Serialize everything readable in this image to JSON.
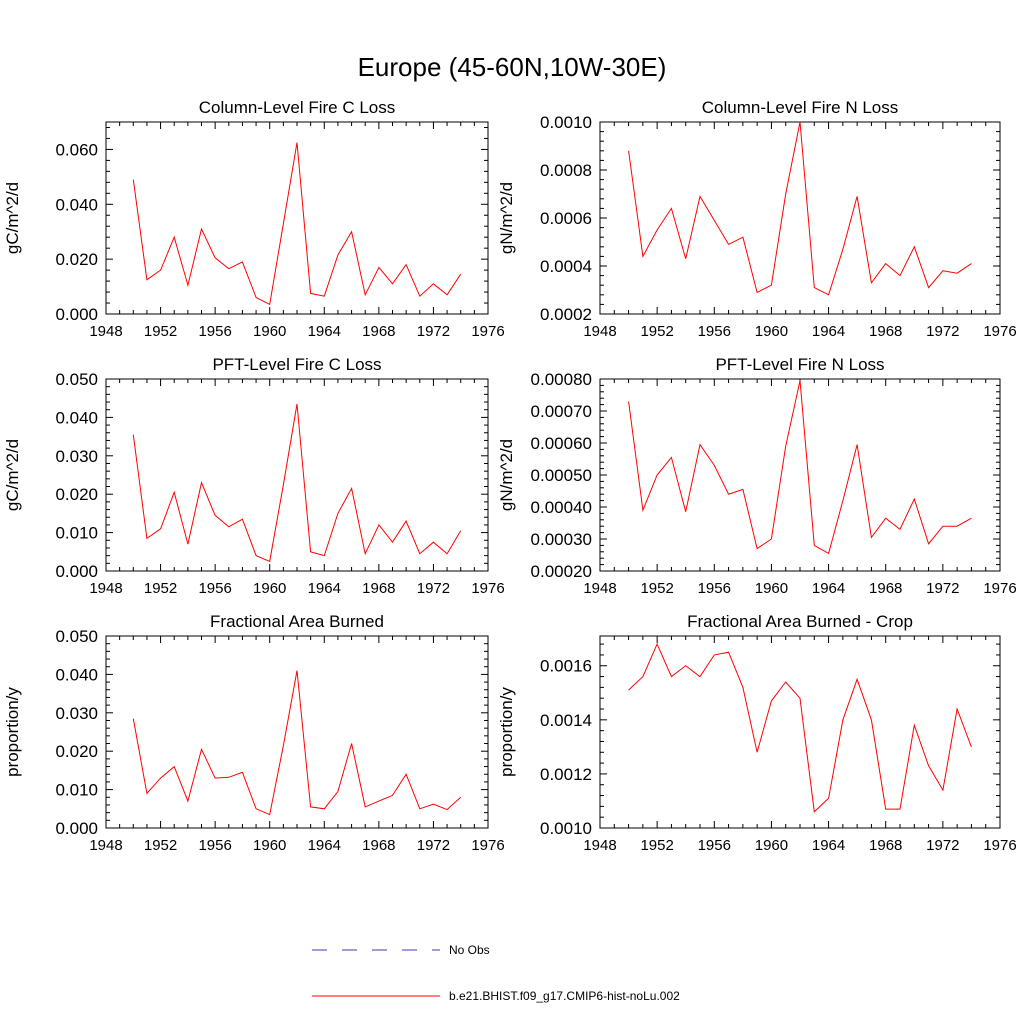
{
  "page_title": "Europe (45-60N,10W-30E)",
  "legend": {
    "items": [
      {
        "label": "No Obs",
        "color": "#3b3bb0",
        "style": "dashed"
      },
      {
        "label": "b.e21.BHIST.f09_g17.CMIP6-hist-noLu.002",
        "color": "#ff0000",
        "style": "solid"
      }
    ]
  },
  "chart_data": [
    {
      "type": "line",
      "title": "Column-Level Fire C Loss",
      "xlabel": "",
      "ylabel": "gC/m^2/d",
      "xlim": [
        1948,
        1976
      ],
      "ylim": [
        0,
        0.07
      ],
      "xticks": [
        "1948",
        "1952",
        "1956",
        "1960",
        "1964",
        "1968",
        "1972",
        "1976"
      ],
      "yticks": [
        "0.000",
        "0.020",
        "0.040",
        "0.060"
      ],
      "ytick_values": [
        0,
        0.02,
        0.04,
        0.06
      ],
      "series": [
        {
          "name": "b.e21.BHIST.f09_g17.CMIP6-hist-noLu.002",
          "color": "#ff0000",
          "x": [
            1950,
            1951,
            1952,
            1953,
            1954,
            1955,
            1956,
            1957,
            1958,
            1959,
            1960,
            1961,
            1962,
            1963,
            1964,
            1965,
            1966,
            1967,
            1968,
            1969,
            1970,
            1971,
            1972,
            1973,
            1974
          ],
          "values": [
            0.049,
            0.0125,
            0.016,
            0.028,
            0.0105,
            0.031,
            0.0205,
            0.0165,
            0.019,
            0.006,
            0.0035,
            0.033,
            0.0625,
            0.0075,
            0.0065,
            0.0215,
            0.03,
            0.007,
            0.017,
            0.011,
            0.018,
            0.0065,
            0.011,
            0.007,
            0.0145
          ]
        }
      ]
    },
    {
      "type": "line",
      "title": "Column-Level Fire N Loss",
      "xlabel": "",
      "ylabel": "gN/m^2/d",
      "xlim": [
        1948,
        1976
      ],
      "ylim": [
        0.0002,
        0.001
      ],
      "xticks": [
        "1948",
        "1952",
        "1956",
        "1960",
        "1964",
        "1968",
        "1972",
        "1976"
      ],
      "yticks": [
        "0.0002",
        "0.0004",
        "0.0006",
        "0.0008",
        "0.0010"
      ],
      "ytick_values": [
        0.0002,
        0.0004,
        0.0006,
        0.0008,
        0.001
      ],
      "series": [
        {
          "name": "b.e21.BHIST.f09_g17.CMIP6-hist-noLu.002",
          "color": "#ff0000",
          "x": [
            1950,
            1951,
            1952,
            1953,
            1954,
            1955,
            1956,
            1957,
            1958,
            1959,
            1960,
            1961,
            1962,
            1963,
            1964,
            1965,
            1966,
            1967,
            1968,
            1969,
            1970,
            1971,
            1972,
            1973,
            1974
          ],
          "values": [
            0.00088,
            0.00044,
            0.00055,
            0.00064,
            0.00043,
            0.00069,
            0.00059,
            0.00049,
            0.00052,
            0.00029,
            0.00032,
            0.0007,
            0.001,
            0.00031,
            0.00028,
            0.00047,
            0.00069,
            0.00033,
            0.00041,
            0.00036,
            0.00048,
            0.00031,
            0.00038,
            0.00037,
            0.00041
          ]
        }
      ]
    },
    {
      "type": "line",
      "title": "PFT-Level Fire C Loss",
      "xlabel": "",
      "ylabel": "gC/m^2/d",
      "xlim": [
        1948,
        1976
      ],
      "ylim": [
        0,
        0.05
      ],
      "xticks": [
        "1948",
        "1952",
        "1956",
        "1960",
        "1964",
        "1968",
        "1972",
        "1976"
      ],
      "yticks": [
        "0.000",
        "0.010",
        "0.020",
        "0.030",
        "0.040",
        "0.050"
      ],
      "ytick_values": [
        0,
        0.01,
        0.02,
        0.03,
        0.04,
        0.05
      ],
      "series": [
        {
          "name": "b.e21.BHIST.f09_g17.CMIP6-hist-noLu.002",
          "color": "#ff0000",
          "x": [
            1950,
            1951,
            1952,
            1953,
            1954,
            1955,
            1956,
            1957,
            1958,
            1959,
            1960,
            1961,
            1962,
            1963,
            1964,
            1965,
            1966,
            1967,
            1968,
            1969,
            1970,
            1971,
            1972,
            1973,
            1974
          ],
          "values": [
            0.0355,
            0.0085,
            0.011,
            0.0205,
            0.007,
            0.023,
            0.0145,
            0.0115,
            0.0135,
            0.004,
            0.0025,
            0.0225,
            0.0435,
            0.005,
            0.004,
            0.015,
            0.0215,
            0.0045,
            0.012,
            0.0075,
            0.013,
            0.0045,
            0.0075,
            0.0045,
            0.0105
          ]
        }
      ]
    },
    {
      "type": "line",
      "title": "PFT-Level Fire N Loss",
      "xlabel": "",
      "ylabel": "gN/m^2/d",
      "xlim": [
        1948,
        1976
      ],
      "ylim": [
        0.0002,
        0.0008
      ],
      "xticks": [
        "1948",
        "1952",
        "1956",
        "1960",
        "1964",
        "1968",
        "1972",
        "1976"
      ],
      "yticks": [
        "0.00020",
        "0.00030",
        "0.00040",
        "0.00050",
        "0.00060",
        "0.00070",
        "0.00080"
      ],
      "ytick_values": [
        0.0002,
        0.0003,
        0.0004,
        0.0005,
        0.0006,
        0.0007,
        0.0008
      ],
      "series": [
        {
          "name": "b.e21.BHIST.f09_g17.CMIP6-hist-noLu.002",
          "color": "#ff0000",
          "x": [
            1950,
            1951,
            1952,
            1953,
            1954,
            1955,
            1956,
            1957,
            1958,
            1959,
            1960,
            1961,
            1962,
            1963,
            1964,
            1965,
            1966,
            1967,
            1968,
            1969,
            1970,
            1971,
            1972,
            1973,
            1974
          ],
          "values": [
            0.00073,
            0.00039,
            0.0005,
            0.000555,
            0.000385,
            0.000595,
            0.00053,
            0.00044,
            0.000455,
            0.00027,
            0.0003,
            0.00059,
            0.000795,
            0.00028,
            0.000255,
            0.00042,
            0.000595,
            0.000305,
            0.000365,
            0.00033,
            0.000425,
            0.000285,
            0.00034,
            0.00034,
            0.000365
          ]
        }
      ]
    },
    {
      "type": "line",
      "title": "Fractional Area Burned",
      "xlabel": "",
      "ylabel": "proportion/y",
      "xlim": [
        1948,
        1976
      ],
      "ylim": [
        0,
        0.05
      ],
      "xticks": [
        "1948",
        "1952",
        "1956",
        "1960",
        "1964",
        "1968",
        "1972",
        "1976"
      ],
      "yticks": [
        "0.000",
        "0.010",
        "0.020",
        "0.030",
        "0.040",
        "0.050"
      ],
      "ytick_values": [
        0,
        0.01,
        0.02,
        0.03,
        0.04,
        0.05
      ],
      "series": [
        {
          "name": "b.e21.BHIST.f09_g17.CMIP6-hist-noLu.002",
          "color": "#ff0000",
          "x": [
            1950,
            1951,
            1952,
            1953,
            1954,
            1955,
            1956,
            1957,
            1958,
            1959,
            1960,
            1961,
            1962,
            1963,
            1964,
            1965,
            1966,
            1967,
            1968,
            1969,
            1970,
            1971,
            1972,
            1973,
            1974
          ],
          "values": [
            0.0285,
            0.009,
            0.013,
            0.016,
            0.007,
            0.0205,
            0.013,
            0.0132,
            0.0145,
            0.005,
            0.0035,
            0.0215,
            0.041,
            0.0055,
            0.005,
            0.0095,
            0.022,
            0.0055,
            0.007,
            0.0085,
            0.014,
            0.005,
            0.0062,
            0.0048,
            0.008
          ]
        }
      ]
    },
    {
      "type": "line",
      "title": "Fractional Area Burned - Crop",
      "xlabel": "",
      "ylabel": "proportion/y",
      "xlim": [
        1948,
        1976
      ],
      "ylim": [
        0.001,
        0.00171
      ],
      "xticks": [
        "1948",
        "1952",
        "1956",
        "1960",
        "1964",
        "1968",
        "1972",
        "1976"
      ],
      "yticks": [
        "0.0010",
        "0.0012",
        "0.0014",
        "0.0016"
      ],
      "ytick_values": [
        0.001,
        0.0012,
        0.0014,
        0.0016
      ],
      "series": [
        {
          "name": "b.e21.BHIST.f09_g17.CMIP6-hist-noLu.002",
          "color": "#ff0000",
          "x": [
            1950,
            1951,
            1952,
            1953,
            1954,
            1955,
            1956,
            1957,
            1958,
            1959,
            1960,
            1961,
            1962,
            1963,
            1964,
            1965,
            1966,
            1967,
            1968,
            1969,
            1970,
            1971,
            1972,
            1973,
            1974
          ],
          "values": [
            0.00151,
            0.00156,
            0.00168,
            0.00156,
            0.0016,
            0.00156,
            0.00164,
            0.00165,
            0.00152,
            0.00128,
            0.00147,
            0.00154,
            0.00148,
            0.00106,
            0.00111,
            0.0014,
            0.00155,
            0.0014,
            0.00107,
            0.00107,
            0.00138,
            0.00123,
            0.00114,
            0.00144,
            0.0013
          ]
        }
      ]
    }
  ]
}
